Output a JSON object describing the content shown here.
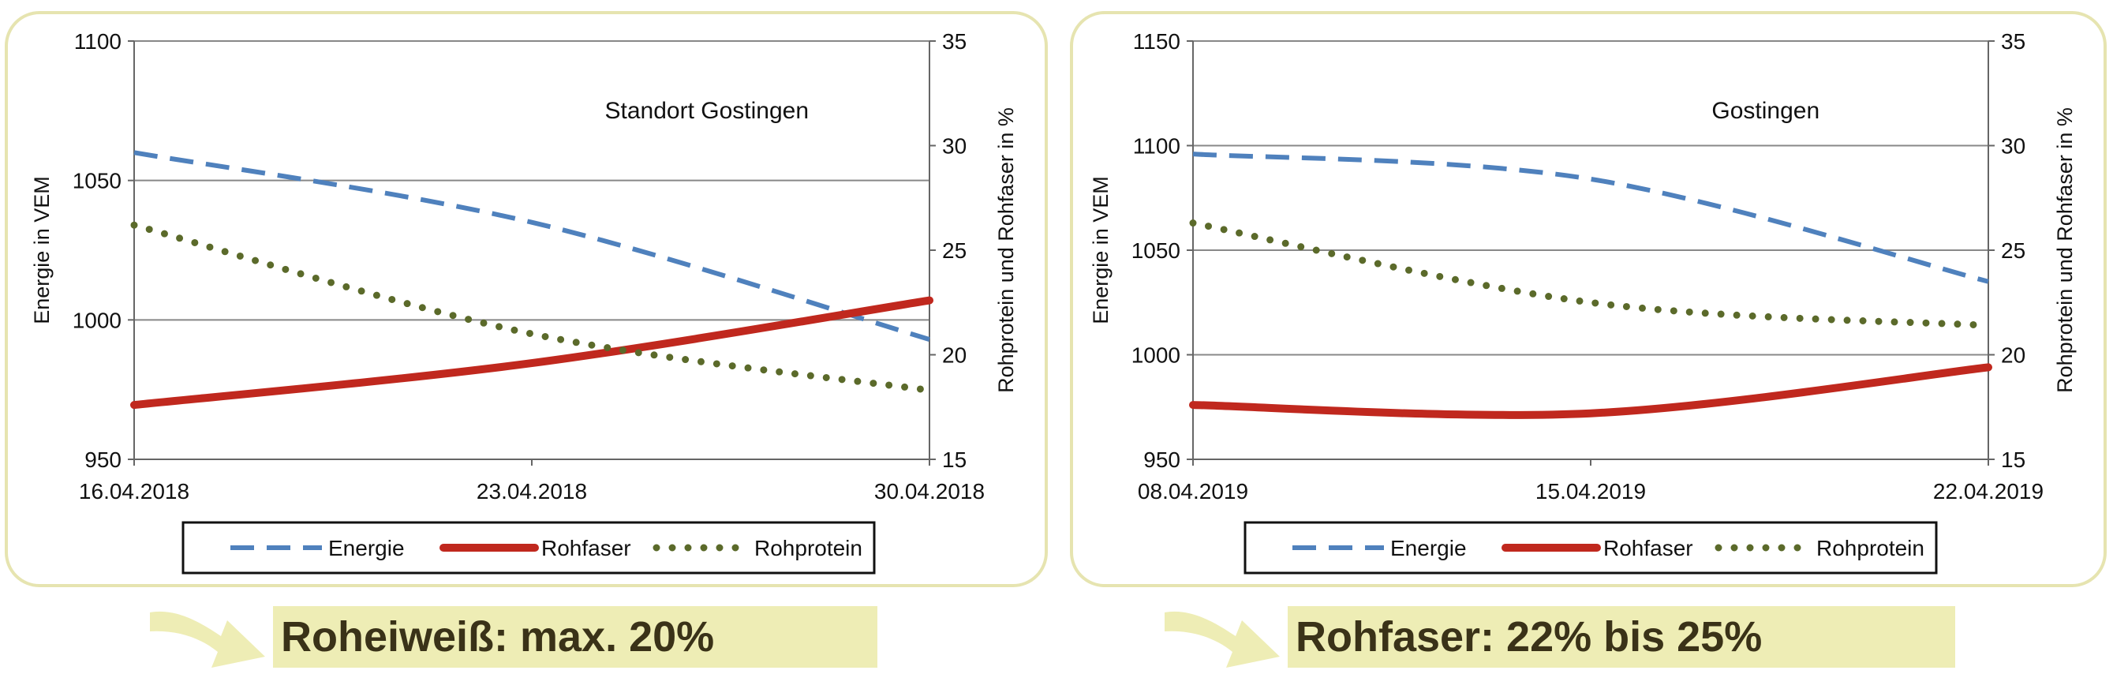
{
  "colors": {
    "energie": "#4f81bd",
    "rohfaser": "#c0281e",
    "rohprotein": "#5b6a2a",
    "panel_border": "#e6e4b0",
    "callout_bg": "#eeedb5",
    "callout_text": "#3a3218",
    "arrow": "#eeedb5"
  },
  "chart_data": [
    {
      "type": "line",
      "annotation": "Standort Gostingen",
      "ylabel": "Energie in VEM",
      "y2label": "Rohprotein und Rohfaser in %",
      "ylim": [
        950,
        1100
      ],
      "y_ticks": [
        "950",
        "1000",
        "1050",
        "1100"
      ],
      "y2lim": [
        15,
        35
      ],
      "y2_ticks": [
        "15",
        "20",
        "25",
        "30",
        "35"
      ],
      "x_ticks": [
        "16.04.2018",
        "23.04.2018",
        "30.04.2018"
      ],
      "xlim": [
        "2018-04-16",
        "2018-04-30"
      ],
      "grid": true,
      "legend": "bottom",
      "series": [
        {
          "name": "Energie",
          "axis": "left",
          "style": "dashed",
          "x": [
            "2018-04-16",
            "2018-04-23",
            "2018-04-30"
          ],
          "y": [
            1060,
            1035,
            993
          ]
        },
        {
          "name": "Rohfaser",
          "axis": "right",
          "style": "solid",
          "x": [
            "2018-04-16",
            "2018-04-23",
            "2018-04-30"
          ],
          "y": [
            17.6,
            19.6,
            22.6
          ]
        },
        {
          "name": "Rohprotein",
          "axis": "right",
          "style": "dotted",
          "x": [
            "2018-04-16",
            "2018-04-23",
            "2018-04-30"
          ],
          "y": [
            26.2,
            21.0,
            18.3
          ]
        }
      ]
    },
    {
      "type": "line",
      "annotation": "Gostingen",
      "ylabel": "Energie in VEM",
      "y2label": "Rohprotein und Rohfaser in %",
      "ylim": [
        950,
        1150
      ],
      "y_ticks": [
        "950",
        "1000",
        "1050",
        "1100",
        "1150"
      ],
      "y2lim": [
        15,
        35
      ],
      "y2_ticks": [
        "15",
        "20",
        "25",
        "30",
        "35"
      ],
      "x_ticks": [
        "08.04.2019",
        "15.04.2019",
        "22.04.2019"
      ],
      "xlim": [
        "2019-04-08",
        "2019-04-22"
      ],
      "grid": true,
      "legend": "bottom",
      "series": [
        {
          "name": "Energie",
          "axis": "left",
          "style": "dashed",
          "x": [
            "2019-04-08",
            "2019-04-15",
            "2019-04-22"
          ],
          "y": [
            1096,
            1084,
            1035
          ]
        },
        {
          "name": "Rohfaser",
          "axis": "right",
          "style": "solid",
          "x": [
            "2019-04-08",
            "2019-04-15",
            "2019-04-22"
          ],
          "y": [
            17.6,
            17.2,
            19.4
          ]
        },
        {
          "name": "Rohprotein",
          "axis": "right",
          "style": "dotted",
          "x": [
            "2019-04-08",
            "2019-04-15",
            "2019-04-22"
          ],
          "y": [
            26.3,
            22.5,
            21.4
          ]
        }
      ]
    }
  ],
  "callouts": [
    "Roheiweiß: max. 20%",
    "Rohfaser: 22% bis 25%"
  ]
}
